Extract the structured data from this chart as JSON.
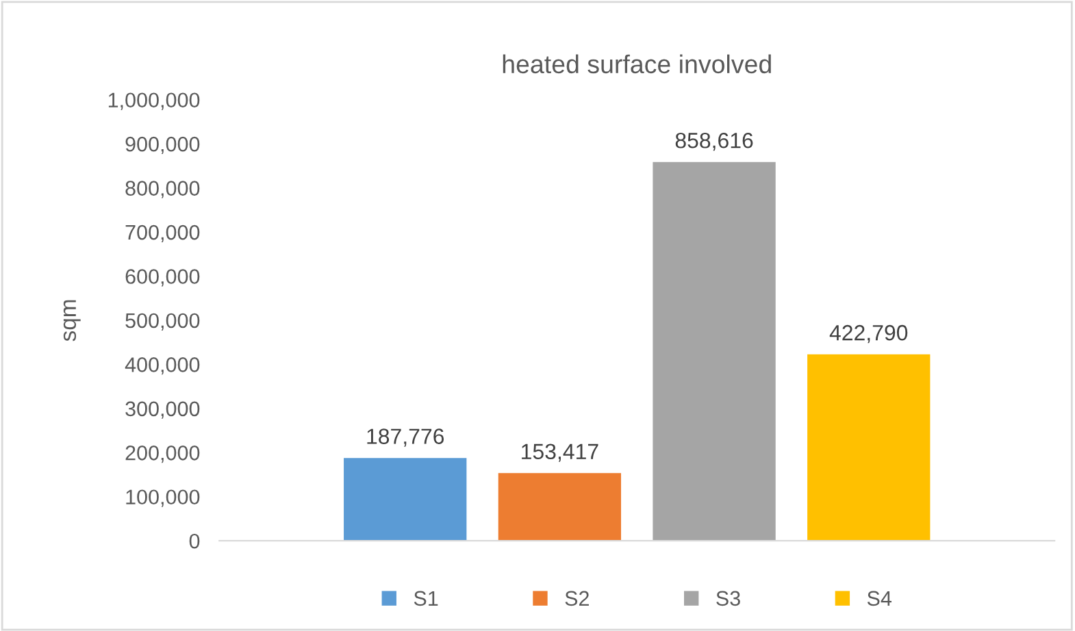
{
  "chart_data": {
    "type": "bar",
    "title": "heated surface involved",
    "ylabel": "sqm",
    "categories": [
      null
    ],
    "series": [
      {
        "name": "S1",
        "color": "#5b9bd5",
        "values": [
          187776
        ],
        "value_labels": [
          "187,776"
        ]
      },
      {
        "name": "S2",
        "color": "#ed7d31",
        "values": [
          153417
        ],
        "value_labels": [
          "153,417"
        ]
      },
      {
        "name": "S3",
        "color": "#a5a5a5",
        "values": [
          858616
        ],
        "value_labels": [
          "858,616"
        ]
      },
      {
        "name": "S4",
        "color": "#ffc000",
        "values": [
          422790
        ],
        "value_labels": [
          "422,790"
        ]
      }
    ],
    "ylim": [
      0,
      1000000
    ],
    "yticks": [
      0,
      {
        "value": 100000,
        "label": "100,000"
      },
      {
        "value": 200000,
        "label": "200,000"
      },
      {
        "value": 300000,
        "label": "300,000"
      },
      {
        "value": 400000,
        "label": "400,000"
      },
      {
        "value": 500000,
        "label": "500,000"
      },
      {
        "value": 600000,
        "label": "600,000"
      },
      {
        "value": 700000,
        "label": "700,000"
      },
      {
        "value": 800000,
        "label": "800,000"
      },
      {
        "value": 900000,
        "label": "900,000"
      },
      {
        "value": 1000000,
        "label": "1,000,000"
      }
    ],
    "grid": false,
    "legend": "bottom"
  }
}
